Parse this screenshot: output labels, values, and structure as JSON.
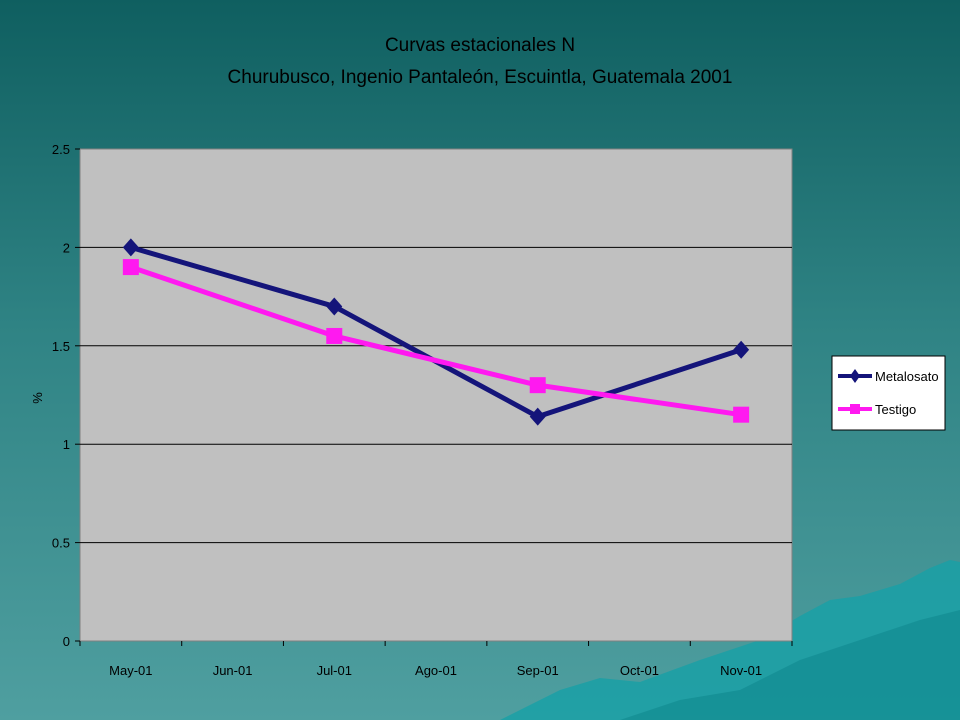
{
  "chart_data": {
    "type": "line",
    "title": "Curvas estacionales N",
    "subtitle": "Churubusco, Ingenio Pantaleón, Escuintla, Guatemala 2001",
    "xlabel": "",
    "ylabel": "%",
    "categories": [
      "May-01",
      "Jun-01",
      "Jul-01",
      "Ago-01",
      "Sep-01",
      "Oct-01",
      "Nov-01"
    ],
    "yticks": [
      "0",
      "0.5",
      "1",
      "1.5",
      "2",
      "2.5"
    ],
    "ylim": [
      0,
      2.5
    ],
    "grid": true,
    "legend": "right",
    "series": [
      {
        "name": "Metalosato",
        "color": "#14147a",
        "marker": "diamond",
        "points": [
          {
            "x": "May-01",
            "y": 2.0
          },
          {
            "x": "Jul-01",
            "y": 1.7
          },
          {
            "x": "Sep-01",
            "y": 1.14
          },
          {
            "x": "Nov-01",
            "y": 1.48
          }
        ]
      },
      {
        "name": "Testigo",
        "color": "#ff19f0",
        "marker": "square",
        "points": [
          {
            "x": "May-01",
            "y": 1.9
          },
          {
            "x": "Jul-01",
            "y": 1.55
          },
          {
            "x": "Sep-01",
            "y": 1.3
          },
          {
            "x": "Nov-01",
            "y": 1.15
          }
        ]
      }
    ],
    "plot_background": "#c0c0c0"
  }
}
